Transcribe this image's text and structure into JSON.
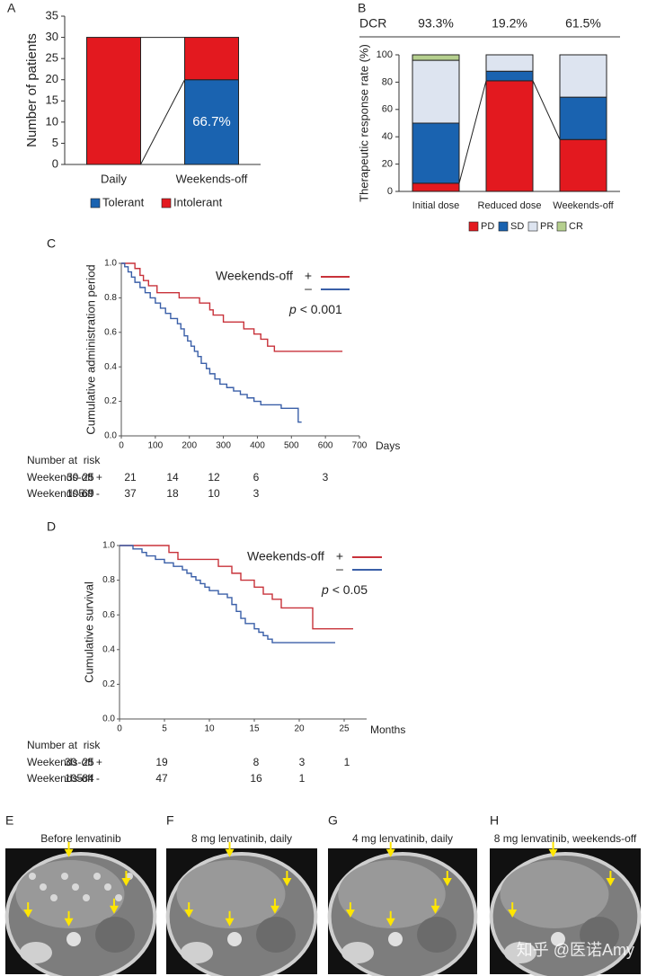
{
  "chart_data": [
    {
      "panel": "A",
      "type": "stacked_bar",
      "ylabel": "Number of patients",
      "categories": [
        "Daily",
        "Weekends-off"
      ],
      "series": [
        {
          "name": "Tolerant",
          "color": "#1a63b0",
          "values": [
            0,
            20
          ]
        },
        {
          "name": "Intolerant",
          "color": "#e3191f",
          "values": [
            30,
            10
          ]
        }
      ],
      "ylim": [
        0,
        35
      ],
      "yticks": [
        0,
        5,
        10,
        15,
        20,
        25,
        30,
        35
      ],
      "annotations": [
        {
          "text": "66.7%"
        }
      ],
      "legend_position": "bottom"
    },
    {
      "panel": "B",
      "type": "stacked_bar",
      "ylabel": "Therapeutic response rate (%)",
      "categories": [
        "Initial dose",
        "Reduced dose",
        "Weekends-off"
      ],
      "series": [
        {
          "name": "PD",
          "color": "#e3191f",
          "values": [
            6,
            81,
            38
          ]
        },
        {
          "name": "SD",
          "color": "#1a63b0",
          "values": [
            44,
            7,
            31
          ]
        },
        {
          "name": "PR",
          "color": "#dde4f0",
          "values": [
            46,
            12,
            31
          ]
        },
        {
          "name": "CR",
          "color": "#b5cf8e",
          "values": [
            4,
            0,
            0
          ]
        }
      ],
      "ylim": [
        0,
        100
      ],
      "yticks": [
        0,
        20,
        40,
        60,
        80,
        100
      ],
      "dcr": {
        "label": "DCR",
        "values": [
          93.3,
          19.2,
          61.5
        ],
        "value_labels": [
          "93.3%",
          "19.2%",
          "61.5%"
        ]
      },
      "legend_position": "bottom"
    },
    {
      "panel": "C",
      "type": "step",
      "ylabel": "Cumulative administration period",
      "xlabel": "Days",
      "xlim": [
        0,
        700
      ],
      "xticks": [
        0,
        100,
        200,
        300,
        400,
        500,
        600,
        700
      ],
      "ylim": [
        0,
        1
      ],
      "yticks": [
        {
          "value": 0,
          "label": "0.0"
        },
        0.2,
        0.4,
        0.6,
        0.8,
        {
          "value": 1,
          "label": "1.0"
        }
      ],
      "legend_title": "Weekends-off",
      "series": [
        {
          "name": "+",
          "color": "#c8323a",
          "x": [
            0,
            40,
            55,
            65,
            80,
            105,
            170,
            230,
            260,
            270,
            300,
            360,
            390,
            410,
            430,
            450,
            650
          ],
          "values": [
            1.0,
            0.97,
            0.93,
            0.9,
            0.87,
            0.83,
            0.8,
            0.77,
            0.73,
            0.7,
            0.66,
            0.62,
            0.59,
            0.56,
            0.52,
            0.49,
            0.49
          ]
        },
        {
          "name": "–",
          "color": "#3a5fa8",
          "x": [
            0,
            10,
            20,
            30,
            40,
            55,
            70,
            85,
            100,
            115,
            130,
            145,
            165,
            175,
            185,
            195,
            205,
            215,
            225,
            235,
            250,
            260,
            275,
            290,
            310,
            330,
            350,
            370,
            390,
            410,
            470,
            520,
            530
          ],
          "values": [
            1.0,
            0.98,
            0.95,
            0.92,
            0.89,
            0.86,
            0.83,
            0.8,
            0.77,
            0.74,
            0.71,
            0.68,
            0.65,
            0.62,
            0.58,
            0.55,
            0.52,
            0.49,
            0.46,
            0.42,
            0.39,
            0.36,
            0.33,
            0.3,
            0.28,
            0.26,
            0.24,
            0.22,
            0.2,
            0.18,
            0.16,
            0.08,
            0.08
          ]
        }
      ],
      "p_symbol": "p",
      "p_text": "< 0.001",
      "risk_table": {
        "title": "Number at  risk",
        "rows": [
          {
            "label": "Weekends-off +",
            "values": [
              30,
              25,
              21,
              14,
              12,
              6,
              3
            ]
          },
          {
            "label": "Weekends-off -",
            "values": [
              105,
              69,
              37,
              18,
              10,
              3
            ]
          }
        ]
      }
    },
    {
      "panel": "D",
      "type": "step",
      "ylabel": "Cumulative survival",
      "xlabel": "Months",
      "xlim": [
        0,
        27.5
      ],
      "xticks": [
        0,
        5,
        10,
        15,
        20,
        25
      ],
      "ylim": [
        0,
        1
      ],
      "yticks": [
        {
          "value": 0,
          "label": "0.0"
        },
        0.2,
        0.4,
        0.6,
        0.8,
        {
          "value": 1,
          "label": "1.0"
        }
      ],
      "legend_title": "Weekends-off",
      "series": [
        {
          "name": "+",
          "color": "#c8323a",
          "x": [
            0,
            5.5,
            6.5,
            11,
            12.5,
            13.5,
            15,
            16,
            17,
            18,
            21.5,
            26
          ],
          "values": [
            1.0,
            0.96,
            0.92,
            0.88,
            0.84,
            0.8,
            0.76,
            0.72,
            0.69,
            0.64,
            0.52,
            0.52
          ]
        },
        {
          "name": "–",
          "color": "#3a5fa8",
          "x": [
            0,
            1.5,
            2.5,
            3,
            4,
            5,
            6,
            7,
            7.5,
            8,
            8.5,
            9,
            9.5,
            10,
            11,
            12,
            12.5,
            13,
            13.5,
            14,
            15,
            15.5,
            16,
            16.5,
            17,
            24
          ],
          "values": [
            1.0,
            0.98,
            0.96,
            0.94,
            0.92,
            0.9,
            0.88,
            0.86,
            0.84,
            0.82,
            0.8,
            0.78,
            0.76,
            0.74,
            0.72,
            0.7,
            0.66,
            0.62,
            0.58,
            0.55,
            0.52,
            0.5,
            0.48,
            0.46,
            0.44,
            0.44
          ]
        }
      ],
      "p_symbol": "p",
      "p_text": "< 0.05",
      "risk_table": {
        "title": "Number at  risk",
        "rows": [
          {
            "label": "Weekends-off +",
            "values": [
              30,
              25,
              19,
              8,
              3,
              1
            ]
          },
          {
            "label": "Weekends-off -",
            "values": [
              105,
              84,
              47,
              16,
              1
            ]
          }
        ]
      }
    }
  ],
  "image_panels": [
    {
      "panel": "E",
      "caption": "Before lenvatinib"
    },
    {
      "panel": "F",
      "caption": "8 mg lenvatinib, daily"
    },
    {
      "panel": "G",
      "caption": "4 mg lenvatinib, daily"
    },
    {
      "panel": "H",
      "caption": "8 mg lenvatinib, weekends-off"
    }
  ],
  "watermark": "知乎 @医诺Amy"
}
